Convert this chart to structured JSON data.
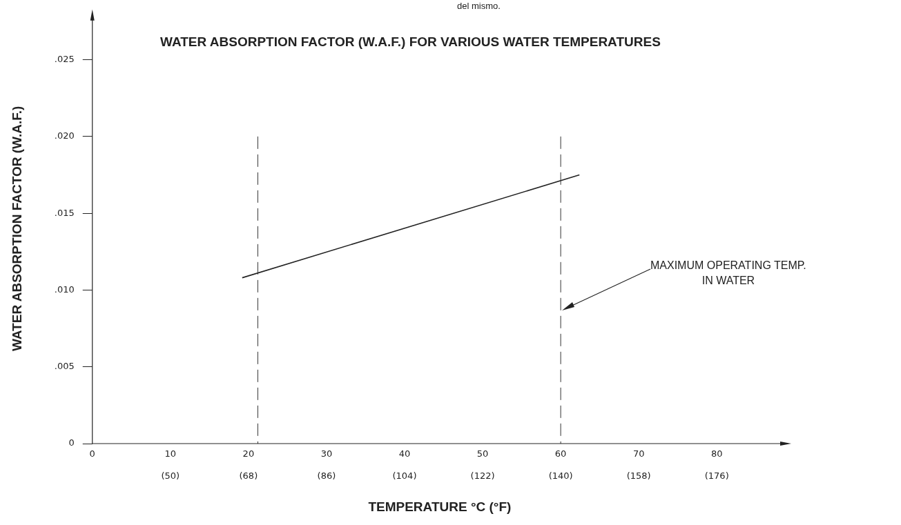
{
  "chart_data": {
    "type": "line",
    "title": "WATER ABSORPTION FACTOR (W.A.F.) FOR VARIOUS WATER TEMPERATURES",
    "xlabel": "TEMPERATURE °C (°F)",
    "ylabel": "WATER ABSORPTION FACTOR (W.A.F.)",
    "annotations": [
      "del mismo.",
      "MAXIMUM OPERATING TEMP.\nIN WATER"
    ],
    "series": [
      {
        "color": "#222222",
        "x": [
          19.2,
          62.4
        ],
        "values": [
          0.0108,
          0.0175
        ]
      }
    ],
    "xlim": [
      0,
      89
    ],
    "ylim": [
      0,
      0.028
    ],
    "xticks": [
      0,
      10,
      20,
      30,
      40,
      50,
      60,
      70,
      80
    ],
    "x2lim": [
      32,
      192.2
    ],
    "x2ticks": [
      {
        "value": 50,
        "label": "(50)"
      },
      {
        "value": 68,
        "label": "(68)"
      },
      {
        "value": 86,
        "label": "(86)"
      },
      {
        "value": 104,
        "label": "(104)"
      },
      {
        "value": 122,
        "label": "(122)"
      },
      {
        "value": 140,
        "label": "(140)"
      },
      {
        "value": 158,
        "label": "(158)"
      },
      {
        "value": 176,
        "label": "(176)"
      }
    ],
    "yticks": [
      0,
      {
        "value": 0.005,
        "label": ".005"
      },
      {
        "value": 0.01,
        "label": ".010"
      },
      {
        "value": 0.015,
        "label": ".015"
      },
      {
        "value": 0.02,
        "label": ".020"
      },
      {
        "value": 0.025,
        "label": ".025"
      }
    ],
    "ref_lines": [
      {
        "axis": "x",
        "value": 21.2,
        "color": "#333333",
        "line_style": "dashed"
      },
      {
        "axis": "x",
        "value": 60,
        "color": "#333333",
        "line_style": "dashed"
      }
    ],
    "grid": false,
    "legend": false,
    "marker": "none",
    "line_style": "solid"
  }
}
